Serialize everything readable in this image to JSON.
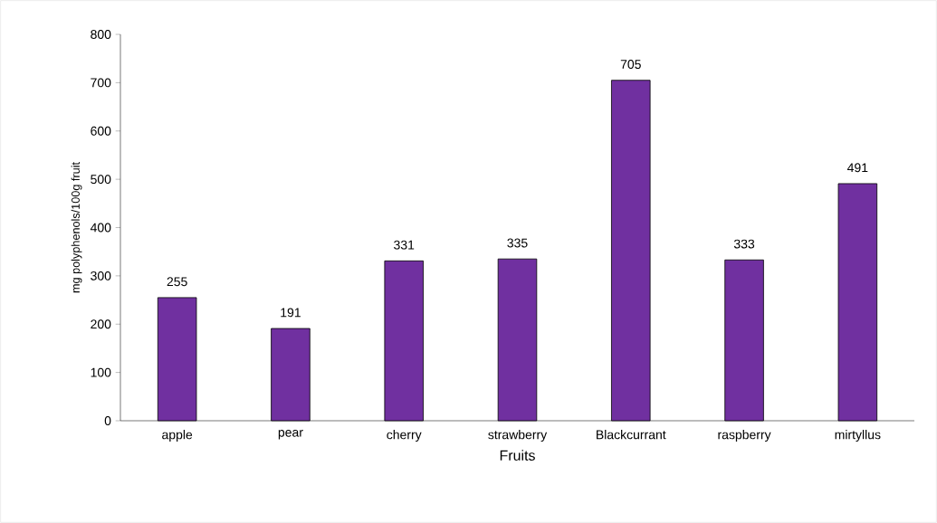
{
  "chart_data": {
    "type": "bar",
    "xlabel": "Fruits",
    "ylabel": "mg polyphenols/100g fruit",
    "categories": [
      "apple",
      "pear",
      "cherry",
      "strawberry",
      "Blackcurrant",
      "raspberry",
      "mirtyllus"
    ],
    "values": [
      255,
      191,
      331,
      335,
      705,
      333,
      491
    ],
    "color": "#7030a0",
    "ylim": [
      0,
      800
    ],
    "yticks": [
      0,
      100,
      200,
      300,
      400,
      500,
      600,
      700,
      800
    ],
    "data_labels": true,
    "grid": false
  }
}
